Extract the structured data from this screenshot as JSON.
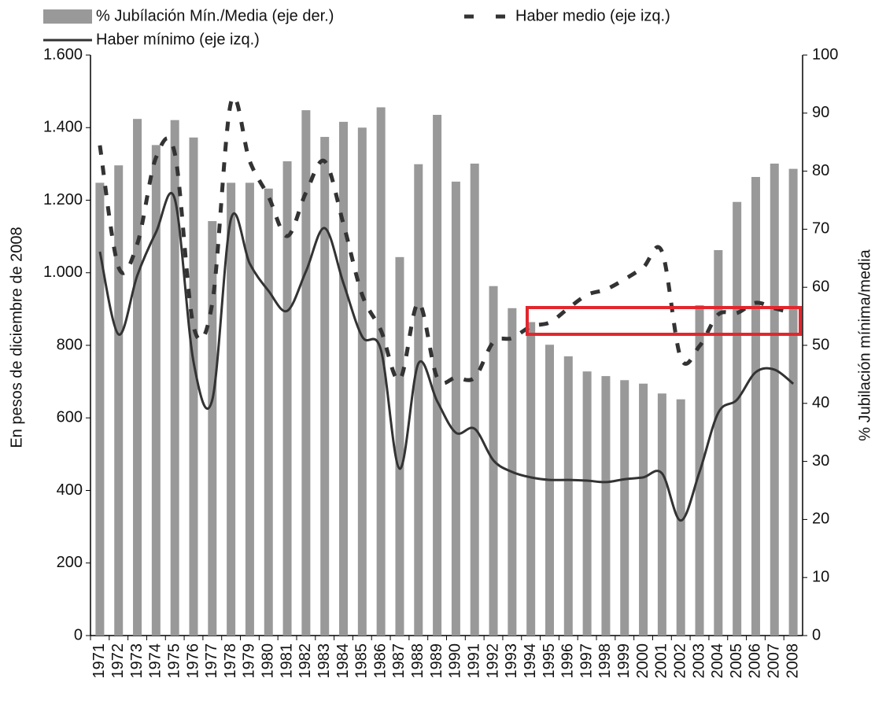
{
  "chart_data": {
    "type": "bar-line",
    "categories": [
      "1971",
      "1972",
      "1973",
      "1974",
      "1975",
      "1976",
      "1977",
      "1978",
      "1979",
      "1980",
      "1981",
      "1982",
      "1983",
      "1984",
      "1985",
      "1986",
      "1987",
      "1988",
      "1989",
      "1990",
      "1991",
      "1992",
      "1993",
      "1994",
      "1995",
      "1996",
      "1997",
      "1998",
      "1999",
      "2000",
      "2001",
      "2002",
      "2003",
      "2004",
      "2005",
      "2006",
      "2007",
      "2008"
    ],
    "series": [
      {
        "name": "% Jubílación Mín./Media (eje der.)",
        "type": "bar",
        "axis": "y2",
        "color": "#999999",
        "values": [
          78,
          81,
          89,
          84.5,
          88.8,
          85.8,
          71.4,
          78,
          78,
          77,
          81.7,
          90.5,
          85.9,
          88.5,
          87.5,
          91,
          65.2,
          81.2,
          89.7,
          78.2,
          81.3,
          60.2,
          56.4,
          54,
          50.1,
          48.1,
          45.5,
          44.7,
          44,
          43.4,
          41.7,
          40.7,
          56.9,
          66.4,
          74.7,
          79,
          81.3,
          80.4
        ]
      },
      {
        "name": "Haber medio (eje izq.)",
        "type": "line",
        "style": "dashed",
        "color": "#333333",
        "values": [
          1351,
          1015,
          1080,
          1318,
          1329,
          852,
          917,
          1470,
          1307,
          1210,
          1101,
          1221,
          1307,
          1134,
          939,
          841,
          705,
          917,
          711,
          711,
          711,
          809,
          820,
          852,
          863,
          902,
          939,
          954,
          982,
          1015,
          1058,
          765,
          798,
          885,
          889,
          917,
          902,
          889
        ]
      },
      {
        "name": "Haber mínimo (eje izq.)",
        "type": "line",
        "style": "solid",
        "color": "#333333",
        "values": [
          1058,
          830,
          993,
          1112,
          1203,
          754,
          650,
          1149,
          1025,
          950,
          895,
          1004,
          1123,
          971,
          824,
          787,
          460,
          750,
          646,
          559,
          570,
          483,
          451,
          436,
          429,
          429,
          427,
          423,
          431,
          436,
          447,
          317,
          451,
          614,
          650,
          726,
          733,
          694
        ]
      }
    ],
    "ylabel": "En pesos de  diciembre de 2008",
    "y2label": "% Jubilación mínima/media",
    "ylim": [
      0,
      1600
    ],
    "yticks": [
      0,
      200,
      400,
      600,
      800,
      {
        "value": 1000,
        "label": "1.000"
      },
      {
        "value": 1200,
        "label": "1.200"
      },
      {
        "value": 1400,
        "label": "1.400"
      },
      {
        "value": 1600,
        "label": "1.600"
      }
    ],
    "y2lim": [
      0,
      100
    ],
    "y2ticks": [
      0,
      10,
      20,
      30,
      40,
      50,
      60,
      70,
      80,
      90,
      100
    ],
    "grid": false
  }
}
